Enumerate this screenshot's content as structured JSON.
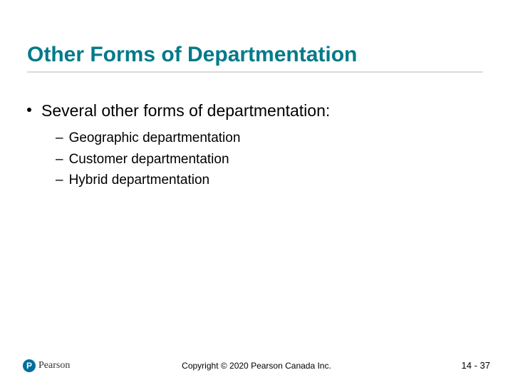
{
  "title": "Other Forms of Departmentation",
  "main_bullet": "Several other forms of departmentation:",
  "sub_bullets": {
    "0": "Geographic departmentation",
    "1": "Customer departmentation",
    "2": "Hybrid departmentation"
  },
  "logo": {
    "letter": "P",
    "brand": "Pearson"
  },
  "copyright": "Copyright © 2020 Pearson Canada Inc.",
  "page_number": "14 - 37",
  "colors": {
    "title_color": "#007a8a",
    "underline_color": "#d9d9d9",
    "text_color": "#000000",
    "logo_bg": "#006e9e",
    "background": "#ffffff"
  },
  "fonts": {
    "title_size_pt": 30,
    "body_size_pt": 23,
    "sub_size_pt": 19,
    "footer_size_pt": 12
  }
}
